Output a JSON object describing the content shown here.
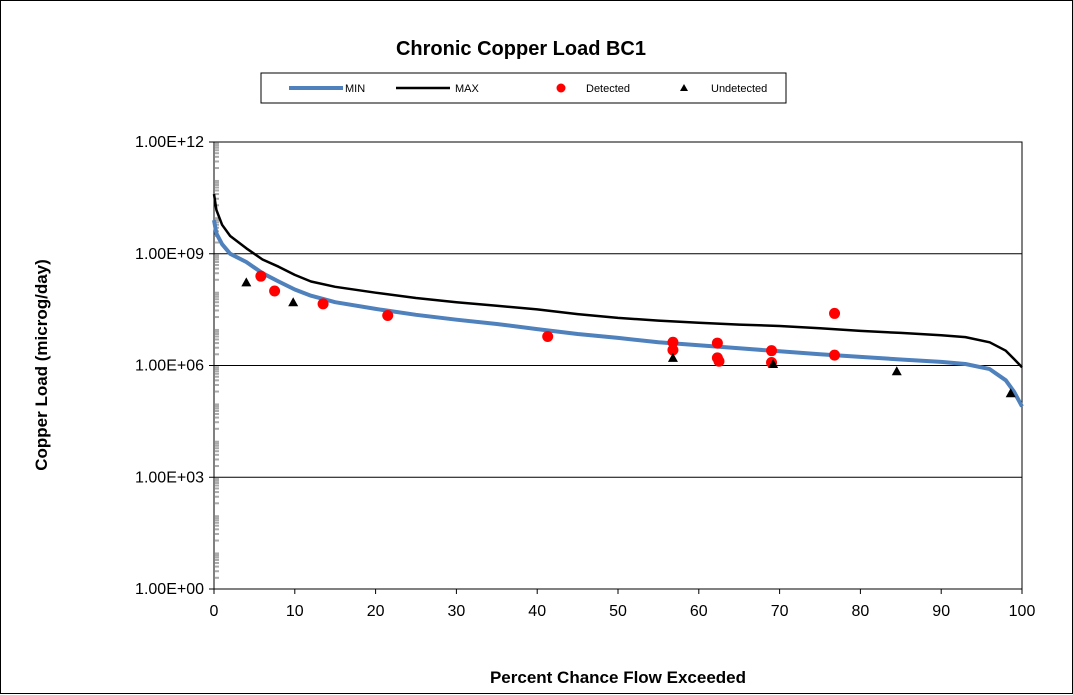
{
  "chart_data": {
    "type": "line",
    "title": "Chronic Copper Load BC1",
    "xlabel": "Percent Chance  Flow Exceeded",
    "ylabel": "Copper Load  (microg/day)",
    "xlim": [
      0,
      100
    ],
    "ylim": [
      1,
      1000000000000
    ],
    "yscale": "log",
    "x_ticks": [
      "0",
      "10",
      "20",
      "30",
      "40",
      "50",
      "60",
      "70",
      "80",
      "90",
      "100"
    ],
    "y_ticks": [
      "1.00E+00",
      "1.00E+03",
      "1.00E+06",
      "1.00E+09",
      "1.00E+12"
    ],
    "grid": "horizontal major gridlines",
    "legend_position": "top",
    "series": [
      {
        "name": "MIN",
        "kind": "line",
        "color": "#4f81bd",
        "points": [
          [
            0,
            8000000000
          ],
          [
            0.3,
            3500000000
          ],
          [
            1,
            1800000000
          ],
          [
            2,
            1000000000
          ],
          [
            4,
            600000000
          ],
          [
            6,
            300000000
          ],
          [
            8,
            180000000
          ],
          [
            10,
            110000000
          ],
          [
            12,
            75000000
          ],
          [
            15,
            50000000
          ],
          [
            20,
            33000000
          ],
          [
            25,
            23000000
          ],
          [
            30,
            17000000
          ],
          [
            35,
            13000000
          ],
          [
            40,
            9500000
          ],
          [
            45,
            7000000
          ],
          [
            50,
            5500000
          ],
          [
            55,
            4200000
          ],
          [
            60,
            3500000
          ],
          [
            65,
            2900000
          ],
          [
            70,
            2400000
          ],
          [
            75,
            2000000
          ],
          [
            80,
            1700000
          ],
          [
            85,
            1450000
          ],
          [
            90,
            1250000
          ],
          [
            93,
            1100000
          ],
          [
            96,
            800000
          ],
          [
            98,
            400000
          ],
          [
            99,
            200000
          ],
          [
            100,
            80000
          ]
        ]
      },
      {
        "name": "MAX",
        "kind": "line",
        "color": "#000000",
        "points": [
          [
            0,
            40000000000
          ],
          [
            0.3,
            15000000000
          ],
          [
            1,
            6000000000
          ],
          [
            2,
            3000000000
          ],
          [
            4,
            1400000000
          ],
          [
            6,
            700000000
          ],
          [
            8,
            450000000
          ],
          [
            10,
            270000000
          ],
          [
            12,
            180000000
          ],
          [
            15,
            130000000
          ],
          [
            20,
            90000000
          ],
          [
            25,
            65000000
          ],
          [
            30,
            50000000
          ],
          [
            35,
            40000000
          ],
          [
            40,
            32000000
          ],
          [
            45,
            24000000
          ],
          [
            50,
            19000000
          ],
          [
            55,
            16000000
          ],
          [
            60,
            14000000
          ],
          [
            65,
            12500000
          ],
          [
            70,
            11500000
          ],
          [
            75,
            10000000
          ],
          [
            80,
            8500000
          ],
          [
            85,
            7500000
          ],
          [
            90,
            6500000
          ],
          [
            93,
            5800000
          ],
          [
            96,
            4200000
          ],
          [
            98,
            2500000
          ],
          [
            99,
            1500000
          ],
          [
            100,
            900000
          ]
        ]
      },
      {
        "name": "Detected",
        "kind": "scatter",
        "color": "#ff0000",
        "marker": "circle",
        "points": [
          [
            5.8,
            250000000
          ],
          [
            7.5,
            100000000
          ],
          [
            13.5,
            45000000
          ],
          [
            21.5,
            22000000
          ],
          [
            41.3,
            6000000
          ],
          [
            56.8,
            4200000
          ],
          [
            56.8,
            2600000
          ],
          [
            62.3,
            4000000
          ],
          [
            62.3,
            1600000
          ],
          [
            62.5,
            1300000
          ],
          [
            69,
            2500000
          ],
          [
            69,
            1200000
          ],
          [
            76.8,
            25000000
          ],
          [
            76.8,
            1900000
          ]
        ]
      },
      {
        "name": "Undetected",
        "kind": "scatter",
        "color": "#000000",
        "marker": "triangle",
        "points": [
          [
            4,
            170000000
          ],
          [
            9.8,
            50000000
          ],
          [
            56.8,
            1600000
          ],
          [
            69.2,
            1100000
          ],
          [
            84.5,
            700000
          ],
          [
            98.6,
            180000
          ]
        ]
      }
    ]
  }
}
